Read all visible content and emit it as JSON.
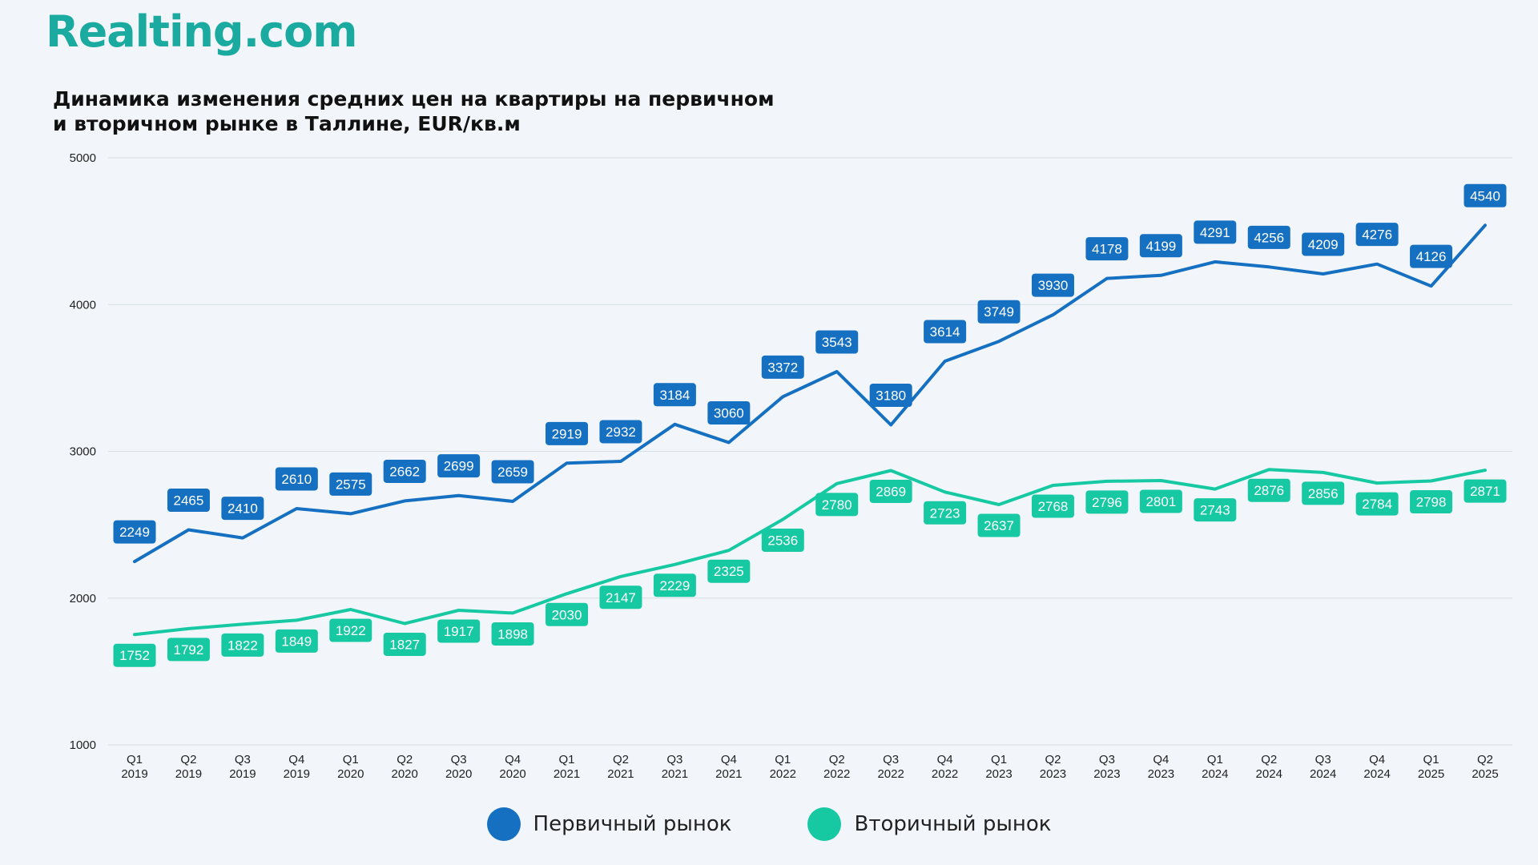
{
  "brand": "Realting.com",
  "title_lines": [
    "Динамика изменения средних цен на квартиры на первичном",
    "и вторичном рынке в Таллине, EUR/кв.м"
  ],
  "chart_data": {
    "type": "line",
    "categories": [
      [
        "Q1",
        "2019"
      ],
      [
        "Q2",
        "2019"
      ],
      [
        "Q3",
        "2019"
      ],
      [
        "Q4",
        "2019"
      ],
      [
        "Q1",
        "2020"
      ],
      [
        "Q2",
        "2020"
      ],
      [
        "Q3",
        "2020"
      ],
      [
        "Q4",
        "2020"
      ],
      [
        "Q1",
        "2021"
      ],
      [
        "Q2",
        "2021"
      ],
      [
        "Q3",
        "2021"
      ],
      [
        "Q4",
        "2021"
      ],
      [
        "Q1",
        "2022"
      ],
      [
        "Q2",
        "2022"
      ],
      [
        "Q3",
        "2022"
      ],
      [
        "Q4",
        "2022"
      ],
      [
        "Q1",
        "2023"
      ],
      [
        "Q2",
        "2023"
      ],
      [
        "Q3",
        "2023"
      ],
      [
        "Q4",
        "2023"
      ],
      [
        "Q1",
        "2024"
      ],
      [
        "Q2",
        "2024"
      ],
      [
        "Q3",
        "2024"
      ],
      [
        "Q4",
        "2024"
      ],
      [
        "Q1",
        "2025"
      ],
      [
        "Q2",
        "2025"
      ]
    ],
    "series": [
      {
        "name": "Первичный рынок",
        "color": "#1570c2",
        "label_position": "above",
        "values": [
          2249,
          2465,
          2410,
          2610,
          2575,
          2662,
          2699,
          2659,
          2919,
          2932,
          3184,
          3060,
          3372,
          3543,
          3180,
          3614,
          3749,
          3930,
          4178,
          4199,
          4291,
          4256,
          4209,
          4276,
          4126,
          4540
        ]
      },
      {
        "name": "Вторичный рынок",
        "color": "#17c9a3",
        "label_position": "below",
        "values": [
          1752,
          1792,
          1822,
          1849,
          1922,
          1827,
          1917,
          1898,
          2030,
          2147,
          2229,
          2325,
          2536,
          2780,
          2869,
          2723,
          2637,
          2768,
          2796,
          2801,
          2743,
          2876,
          2856,
          2784,
          2798,
          2871
        ]
      }
    ],
    "ylim": [
      1000,
      5000
    ],
    "yticks": [
      1000,
      2000,
      3000,
      4000,
      5000
    ],
    "grid": true,
    "legend_position": "bottom-center",
    "xlabel": "",
    "ylabel": ""
  }
}
